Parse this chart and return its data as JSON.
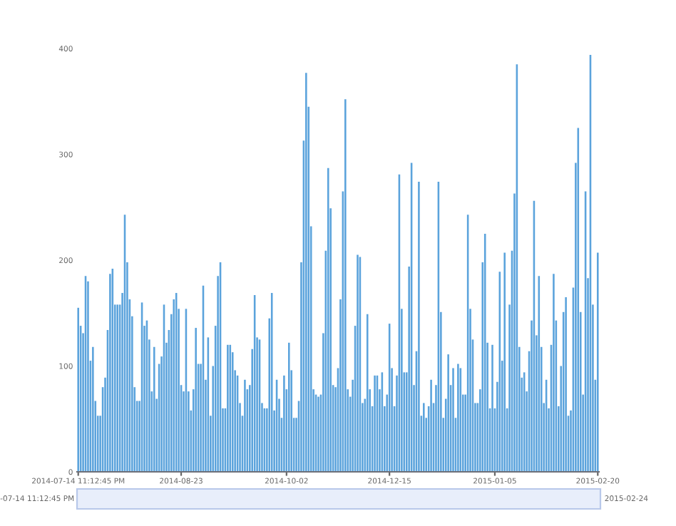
{
  "chart_data": {
    "type": "bar",
    "color": "#5ba3dc",
    "ylim": [
      0,
      400
    ],
    "yticks": [
      0,
      100,
      200,
      300,
      400
    ],
    "grid": false,
    "categories": [
      "2014-07-14 11:12:45 PM",
      null,
      null,
      null,
      null,
      null,
      null,
      null,
      null,
      null,
      null,
      null,
      null,
      null,
      null,
      null,
      null,
      null,
      null,
      null,
      null,
      null,
      null,
      null,
      null,
      null,
      null,
      null,
      null,
      null,
      null,
      null,
      null,
      null,
      null,
      null,
      null,
      null,
      null,
      null,
      null,
      null,
      "2014-08-23",
      null,
      null,
      null,
      null,
      null,
      null,
      null,
      null,
      null,
      null,
      null,
      null,
      null,
      null,
      null,
      null,
      null,
      null,
      null,
      null,
      null,
      null,
      null,
      null,
      null,
      null,
      null,
      null,
      null,
      null,
      null,
      null,
      null,
      null,
      null,
      null,
      null,
      null,
      null,
      null,
      null,
      null,
      "2014-10-02",
      null,
      null,
      null,
      null,
      null,
      null,
      null,
      null,
      null,
      null,
      null,
      null,
      null,
      null,
      null,
      null,
      null,
      null,
      null,
      null,
      null,
      null,
      null,
      null,
      null,
      null,
      null,
      null,
      null,
      null,
      null,
      null,
      null,
      null,
      null,
      null,
      null,
      null,
      null,
      null,
      null,
      "2014-12-15",
      null,
      null,
      null,
      null,
      null,
      null,
      null,
      null,
      null,
      null,
      null,
      null,
      null,
      null,
      null,
      null,
      null,
      null,
      null,
      null,
      null,
      null,
      null,
      null,
      null,
      null,
      null,
      null,
      null,
      null,
      null,
      null,
      null,
      null,
      null,
      null,
      null,
      null,
      null,
      null,
      null,
      null,
      "2015-01-05",
      null,
      null,
      null,
      null,
      null,
      null,
      null,
      null,
      null,
      null,
      null,
      null,
      null,
      null,
      null,
      null,
      null,
      null,
      null,
      null,
      null,
      null,
      null,
      null,
      null,
      null,
      null,
      null,
      null,
      null,
      null,
      null,
      null,
      null,
      null,
      null,
      null,
      null,
      null,
      null,
      null,
      "2015-02-20"
    ],
    "values": [
      155,
      138,
      131,
      185,
      180,
      105,
      118,
      67,
      53,
      53,
      80,
      89,
      134,
      187,
      192,
      158,
      158,
      158,
      169,
      243,
      198,
      163,
      147,
      80,
      67,
      67,
      160,
      138,
      143,
      125,
      76,
      118,
      69,
      102,
      109,
      158,
      122,
      134,
      149,
      163,
      169,
      154,
      82,
      76,
      154,
      76,
      58,
      78,
      136,
      102,
      102,
      176,
      87,
      127,
      53,
      100,
      138,
      185,
      198,
      60,
      60,
      120,
      120,
      113,
      96,
      91,
      65,
      53,
      87,
      78,
      82,
      116,
      167,
      127,
      125,
      65,
      60,
      60,
      145,
      169,
      58,
      87,
      69,
      51,
      91,
      78,
      122,
      96,
      51,
      51,
      67,
      198,
      313,
      377,
      345,
      232,
      78,
      73,
      71,
      73,
      131,
      209,
      287,
      249,
      82,
      80,
      98,
      163,
      265,
      352,
      78,
      71,
      87,
      138,
      205,
      203,
      65,
      69,
      149,
      78,
      62,
      91,
      91,
      78,
      94,
      62,
      73,
      140,
      98,
      62,
      91,
      281,
      154,
      94,
      94,
      194,
      292,
      82,
      114,
      274,
      53,
      65,
      51,
      62,
      87,
      65,
      82,
      274,
      151,
      51,
      69,
      111,
      82,
      98,
      51,
      102,
      98,
      73,
      73,
      243,
      154,
      125,
      65,
      65,
      78,
      198,
      225,
      122,
      60,
      120,
      60,
      85,
      189,
      105,
      207,
      60,
      158,
      209,
      263,
      385,
      118,
      89,
      94,
      76,
      114,
      143,
      256,
      129,
      185,
      118,
      65,
      87,
      60,
      120,
      187,
      143,
      62,
      100,
      151,
      165,
      53,
      58,
      174,
      292,
      325,
      151,
      73,
      265,
      183,
      394,
      158,
      87,
      207
    ],
    "annotations": [
      "-07-14 11:12:45 PM",
      "2015-02-24"
    ]
  }
}
